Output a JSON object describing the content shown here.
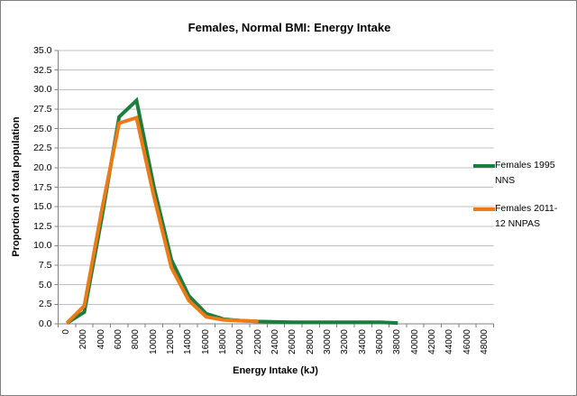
{
  "chart_data": {
    "type": "line",
    "title": "Females, Normal BMI: Energy Intake",
    "xlabel": "Energy Intake (kJ)",
    "ylabel": "Proportion of total population",
    "categories": [
      0,
      2000,
      4000,
      6000,
      8000,
      10000,
      12000,
      14000,
      16000,
      18000,
      20000,
      22000,
      24000,
      26000,
      28000,
      30000,
      32000,
      34000,
      36000,
      38000,
      40000,
      42000,
      44000,
      46000,
      48000
    ],
    "series": [
      {
        "name": "Females 1995 NNS",
        "color": "#1B7E3E",
        "values": [
          0.1,
          1.5,
          13.5,
          26.5,
          28.6,
          17.5,
          8.2,
          3.6,
          1.3,
          0.6,
          0.4,
          0.3,
          0.25,
          0.2,
          0.2,
          0.2,
          0.2,
          0.2,
          0.2,
          0.1
        ]
      },
      {
        "name": "Females 2011-12 NNPAS",
        "color": "#EA7B17",
        "values": [
          0.1,
          2.3,
          14.5,
          25.7,
          26.4,
          16.3,
          7.2,
          3.0,
          0.9,
          0.5,
          0.4,
          0.3
        ]
      }
    ],
    "ylim": [
      0,
      35
    ],
    "y_ticks": [
      0,
      2.5,
      5,
      7.5,
      10,
      12.5,
      15,
      17.5,
      20,
      22.5,
      25,
      27.5,
      30,
      32.5,
      35
    ],
    "grid": "horizontal",
    "legend_position": "right",
    "colors": {
      "grid": "#C0C0C0",
      "axis": "#808080"
    }
  }
}
